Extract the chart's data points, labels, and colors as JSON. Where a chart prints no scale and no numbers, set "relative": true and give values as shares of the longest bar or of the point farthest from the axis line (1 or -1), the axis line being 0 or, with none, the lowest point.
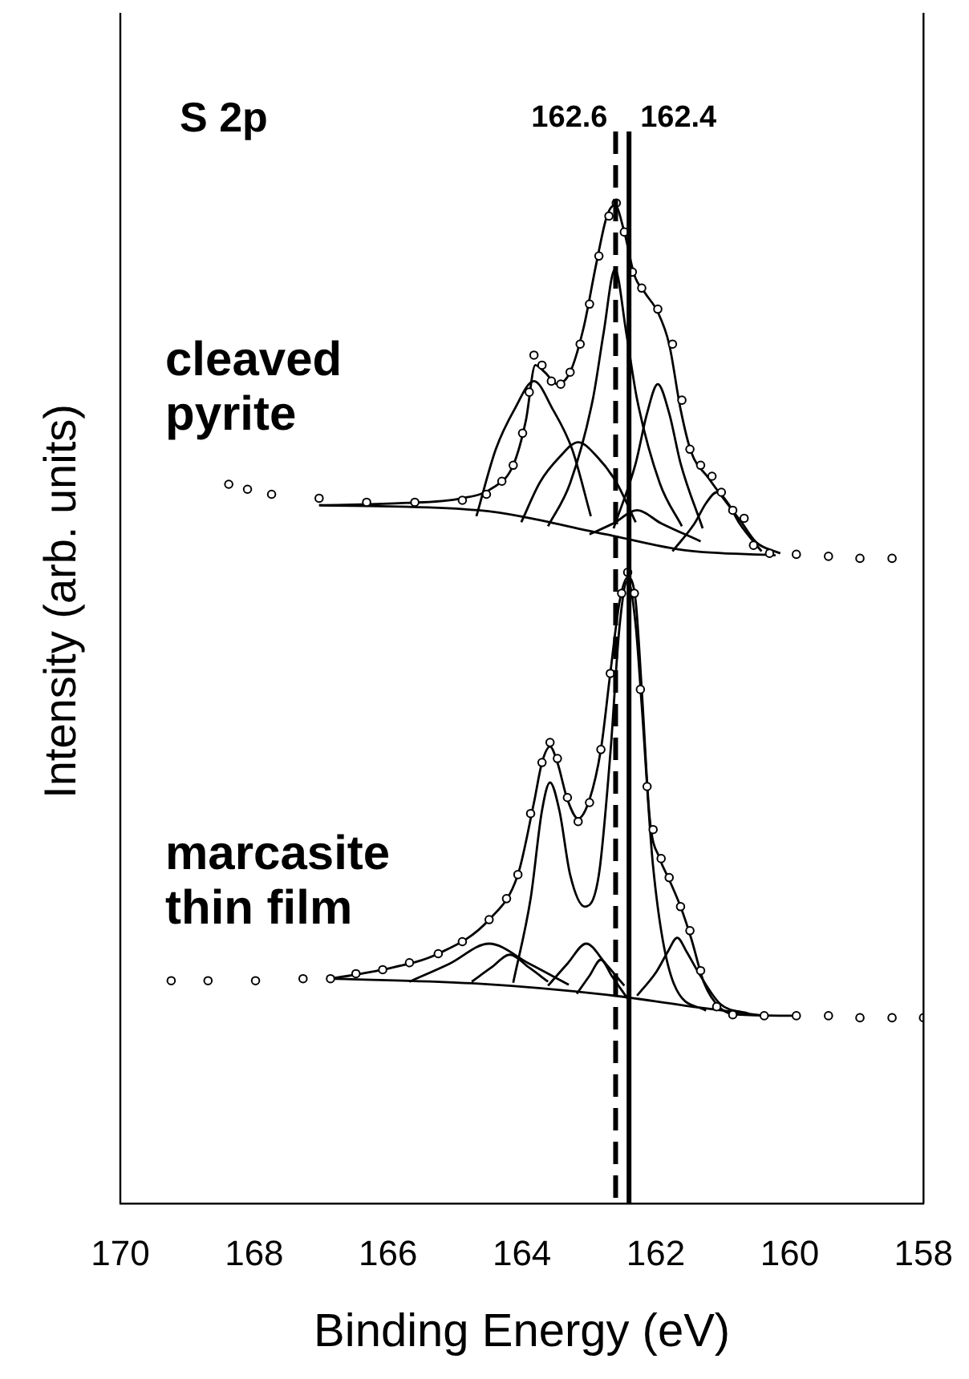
{
  "chart_data": {
    "type": "scatter",
    "title": "S 2p",
    "xlabel": "Binding Energy (eV)",
    "ylabel": "Intensity (arb. units)",
    "annotations": [
      "cleaved pyrite",
      "marcasite thin film"
    ],
    "xlim": [
      170,
      158
    ],
    "xticks": [
      170,
      168,
      166,
      164,
      162,
      160,
      158
    ],
    "relative": true,
    "legend": false,
    "grid": false,
    "ref_lines": [
      {
        "axis": "x",
        "value": 162.6,
        "label": "162.6",
        "line_style": "dashed",
        "color": "#000000"
      },
      {
        "axis": "x",
        "value": 162.4,
        "label": "162.4",
        "line_style": "solid",
        "color": "#000000"
      }
    ],
    "series": [
      {
        "type": "scatter",
        "marker": "circle",
        "color": "#000000",
        "x": [
          168.38,
          168.1,
          167.74,
          167.03,
          166.32,
          165.6,
          164.89,
          164.53,
          164.3,
          164.13,
          163.99,
          163.89,
          163.82,
          163.7,
          163.56,
          163.42,
          163.28,
          163.13,
          162.99,
          162.85,
          162.7,
          162.59,
          162.47,
          162.35,
          162.21,
          161.97,
          161.75,
          161.61,
          161.49,
          161.33,
          161.16,
          161.02,
          160.85,
          160.68,
          160.54,
          160.3,
          159.9,
          159.42,
          158.95,
          158.47
        ],
        "values": [
          0.719,
          0.714,
          0.709,
          0.705,
          0.701,
          0.701,
          0.703,
          0.709,
          0.722,
          0.738,
          0.77,
          0.811,
          0.848,
          0.838,
          0.822,
          0.819,
          0.831,
          0.859,
          0.899,
          0.947,
          0.987,
          1.0,
          0.971,
          0.931,
          0.915,
          0.894,
          0.859,
          0.803,
          0.754,
          0.738,
          0.727,
          0.711,
          0.693,
          0.685,
          0.658,
          0.65,
          0.649,
          0.647,
          0.645,
          0.645
        ]
      },
      {
        "type": "line",
        "marker": "none",
        "color": "#000000",
        "x": [
          167.03,
          165.84,
          164.89,
          164.42,
          164.13,
          163.94,
          163.8,
          163.66,
          163.47,
          163.28,
          163.08,
          162.89,
          162.73,
          162.61,
          162.47,
          162.32,
          162.16,
          161.97,
          161.8,
          161.63,
          161.47,
          161.21,
          160.97,
          160.73,
          160.5,
          160.14
        ],
        "values": [
          0.698,
          0.7,
          0.705,
          0.716,
          0.738,
          0.783,
          0.838,
          0.831,
          0.819,
          0.831,
          0.875,
          0.939,
          0.987,
          0.998,
          0.971,
          0.928,
          0.91,
          0.891,
          0.859,
          0.794,
          0.751,
          0.725,
          0.703,
          0.682,
          0.661,
          0.65
        ]
      },
      {
        "type": "line",
        "marker": "none",
        "color": "#000000",
        "x": [
          167.03,
          164.65,
          162.75,
          161.56,
          160.21
        ],
        "values": [
          0.698,
          0.693,
          0.669,
          0.653,
          0.648
        ]
      },
      {
        "type": "line",
        "marker": "none",
        "color": "#000000",
        "x": [
          164.68,
          164.39,
          164.11,
          163.82,
          163.54,
          163.25,
          162.97
        ],
        "values": [
          0.687,
          0.754,
          0.794,
          0.822,
          0.794,
          0.754,
          0.687
        ]
      },
      {
        "type": "line",
        "marker": "none",
        "color": "#000000",
        "x": [
          164.01,
          163.73,
          163.44,
          163.16,
          162.87,
          162.59,
          162.3
        ],
        "values": [
          0.681,
          0.721,
          0.746,
          0.761,
          0.746,
          0.721,
          0.681
        ]
      },
      {
        "type": "line",
        "marker": "none",
        "color": "#000000",
        "x": [
          163.61,
          163.28,
          162.94,
          162.78,
          162.61,
          162.44,
          162.28,
          161.94,
          161.61
        ],
        "values": [
          0.677,
          0.72,
          0.804,
          0.87,
          0.934,
          0.87,
          0.804,
          0.72,
          0.677
        ]
      },
      {
        "type": "line",
        "marker": "none",
        "color": "#000000",
        "x": [
          162.63,
          162.3,
          162.13,
          161.97,
          161.8,
          161.63,
          161.3
        ],
        "values": [
          0.675,
          0.74,
          0.79,
          0.819,
          0.79,
          0.74,
          0.675
        ]
      },
      {
        "type": "line",
        "marker": "none",
        "color": "#000000",
        "x": [
          162.99,
          162.63,
          162.28,
          161.92,
          161.33
        ],
        "values": [
          0.669,
          0.68,
          0.693,
          0.68,
          0.662
        ]
      },
      {
        "type": "line",
        "marker": "none",
        "color": "#000000",
        "x": [
          161.75,
          161.42,
          161.25,
          161.09,
          160.92,
          160.75,
          160.42
        ],
        "values": [
          0.652,
          0.68,
          0.7,
          0.711,
          0.7,
          0.68,
          0.652
        ]
      },
      {
        "type": "scatter",
        "marker": "circle",
        "color": "#000000",
        "x": [
          169.24,
          168.69,
          167.98,
          167.27,
          166.86,
          166.48,
          166.08,
          165.68,
          165.25,
          164.89,
          164.49,
          164.23,
          164.06,
          163.87,
          163.7,
          163.58,
          163.47,
          163.32,
          163.16,
          162.99,
          162.82,
          162.68,
          162.51,
          162.42,
          162.32,
          162.23,
          162.13,
          162.04,
          161.92,
          161.8,
          161.63,
          161.49,
          161.33,
          161.09,
          160.85,
          160.38,
          159.9,
          159.42,
          158.95,
          158.47,
          158.0
        ],
        "values": [
          0.223,
          0.223,
          0.223,
          0.225,
          0.225,
          0.23,
          0.234,
          0.241,
          0.25,
          0.262,
          0.284,
          0.305,
          0.329,
          0.39,
          0.441,
          0.461,
          0.445,
          0.406,
          0.382,
          0.401,
          0.454,
          0.53,
          0.61,
          0.631,
          0.61,
          0.514,
          0.417,
          0.374,
          0.345,
          0.326,
          0.297,
          0.273,
          0.233,
          0.197,
          0.189,
          0.188,
          0.188,
          0.188,
          0.186,
          0.186,
          0.186
        ]
      },
      {
        "type": "line",
        "marker": "none",
        "color": "#000000",
        "x": [
          166.86,
          166.08,
          165.25,
          164.49,
          164.06,
          163.82,
          163.7,
          163.58,
          163.47,
          163.32,
          163.16,
          162.99,
          162.82,
          162.68,
          162.54,
          162.42,
          162.3,
          162.21,
          162.09,
          161.94,
          161.8,
          161.63,
          161.47,
          161.28,
          161.04,
          160.73,
          159.9
        ],
        "values": [
          0.225,
          0.234,
          0.25,
          0.284,
          0.329,
          0.401,
          0.441,
          0.457,
          0.441,
          0.404,
          0.385,
          0.404,
          0.454,
          0.53,
          0.602,
          0.626,
          0.602,
          0.514,
          0.385,
          0.345,
          0.324,
          0.297,
          0.265,
          0.221,
          0.196,
          0.189,
          0.188
        ]
      },
      {
        "type": "line",
        "marker": "none",
        "color": "#000000",
        "x": [
          166.86,
          164.65,
          162.75,
          161.33,
          160.38
        ],
        "values": [
          0.225,
          0.22,
          0.209,
          0.196,
          0.188
        ]
      },
      {
        "type": "line",
        "marker": "none",
        "color": "#000000",
        "x": [
          165.68,
          165.08,
          164.49,
          163.89,
          163.3
        ],
        "values": [
          0.222,
          0.24,
          0.26,
          0.24,
          0.219
        ]
      },
      {
        "type": "line",
        "marker": "none",
        "color": "#000000",
        "x": [
          164.75,
          164.46,
          164.18,
          163.89,
          163.61
        ],
        "values": [
          0.222,
          0.236,
          0.249,
          0.236,
          0.222
        ]
      },
      {
        "type": "line",
        "marker": "none",
        "color": "#000000",
        "x": [
          164.13,
          163.87,
          163.7,
          163.58,
          163.44,
          163.28,
          163.06,
          162.85,
          162.68,
          162.54,
          162.42,
          162.3,
          162.21,
          162.04,
          161.73,
          161.25
        ],
        "values": [
          0.221,
          0.305,
          0.393,
          0.421,
          0.393,
          0.329,
          0.297,
          0.329,
          0.449,
          0.578,
          0.623,
          0.578,
          0.498,
          0.337,
          0.22,
          0.193
        ]
      },
      {
        "type": "line",
        "marker": "none",
        "color": "#000000",
        "x": [
          163.61,
          163.32,
          163.04,
          162.75,
          162.47
        ],
        "values": [
          0.218,
          0.24,
          0.26,
          0.24,
          0.218
        ]
      },
      {
        "type": "line",
        "marker": "none",
        "color": "#000000",
        "x": [
          163.18,
          162.99,
          162.82,
          162.66,
          162.42
        ],
        "values": [
          0.21,
          0.228,
          0.244,
          0.228,
          0.205
        ]
      },
      {
        "type": "line",
        "marker": "none",
        "color": "#000000",
        "x": [
          162.28,
          161.99,
          161.82,
          161.68,
          161.54,
          161.37,
          161.04,
          160.61
        ],
        "values": [
          0.208,
          0.232,
          0.252,
          0.266,
          0.252,
          0.232,
          0.2,
          0.19
        ]
      }
    ]
  }
}
